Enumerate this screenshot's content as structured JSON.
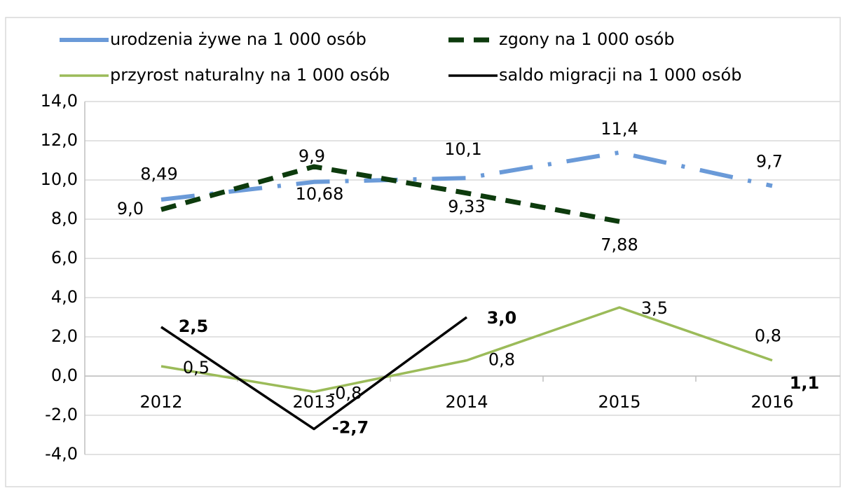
{
  "chart_data": {
    "type": "line",
    "categories": [
      "2012",
      "2013",
      "2014",
      "2015",
      "2016"
    ],
    "series": [
      {
        "name": "urodzenia żywe na 1 000 osób",
        "color": "#6a9ad8",
        "values": [
          9.0,
          9.9,
          10.1,
          11.4,
          9.7
        ],
        "value_labels": [
          "9,0",
          "9,9",
          "10,1",
          "11,4",
          "9,7"
        ]
      },
      {
        "name": "zgony na 1 000 osób",
        "color": "#0d3b0d",
        "values": [
          8.49,
          10.68,
          9.33,
          7.88,
          null
        ],
        "value_labels": [
          "8,49",
          "10,68",
          "9,33",
          "7,88",
          null
        ]
      },
      {
        "name": "przyrost naturalny na 1 000 osób",
        "color": "#9bbb59",
        "values": [
          0.5,
          -0.8,
          0.8,
          3.5,
          0.8
        ],
        "value_labels": [
          "0,5",
          "-0,8",
          "0,8",
          "3,5",
          "0,8"
        ]
      },
      {
        "name": "saldo migracji na 1 000 osób",
        "color": "#000000",
        "values": [
          2.5,
          -2.7,
          3.0,
          null,
          1.1
        ],
        "value_labels": [
          "2,5",
          "-2,7",
          "3,0",
          null,
          "1,1"
        ]
      }
    ],
    "ylim": [
      -4,
      14
    ],
    "yticks": [
      {
        "value": -4,
        "label": "-4,0"
      },
      {
        "value": -2,
        "label": "-2,0"
      },
      {
        "value": 0,
        "label": "0,0"
      },
      {
        "value": 2,
        "label": "2,0"
      },
      {
        "value": 4,
        "label": "4,0"
      },
      {
        "value": 6,
        "label": "6,0"
      },
      {
        "value": 8,
        "label": "8,0"
      },
      {
        "value": 10,
        "label": "10,0"
      },
      {
        "value": 12,
        "label": "12,0"
      },
      {
        "value": 14,
        "label": "14,0"
      }
    ],
    "grid": true
  }
}
